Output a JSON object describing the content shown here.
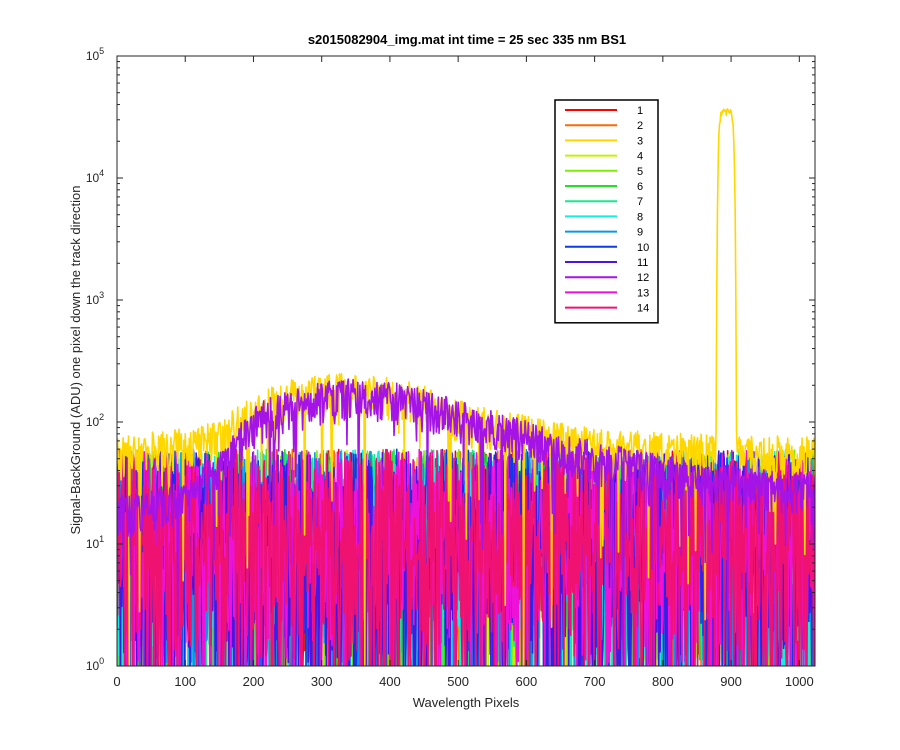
{
  "chart_data": {
    "type": "line",
    "title": "s2015082904_img.mat int time = 25 sec  335 nm BS1",
    "xlabel": "Wavelength Pixels",
    "ylabel": "Signal-BackGround (ADU) one pixel down the track direction",
    "xlim": [
      0,
      1023
    ],
    "ylim": [
      1,
      100000
    ],
    "yscale": "log",
    "xticks": [
      "0",
      "100",
      "200",
      "300",
      "400",
      "500",
      "600",
      "700",
      "800",
      "900",
      "1000"
    ],
    "ytick_base": "10",
    "ytick_exponents": [
      "0",
      "1",
      "2",
      "3",
      "4",
      "5"
    ],
    "grid": false,
    "legend_position": "top-right",
    "note": "",
    "series": [
      {
        "name": "1",
        "color": "#ff0000",
        "noise_level": 18,
        "peak": 0
      },
      {
        "name": "2",
        "color": "#ff6a00",
        "noise_level": 18,
        "peak": 0
      },
      {
        "name": "3",
        "color": "#ffd700",
        "noise_level": 20,
        "hump": [
          {
            "x": 0,
            "y": 60
          },
          {
            "x": 150,
            "y": 80
          },
          {
            "x": 250,
            "y": 180
          },
          {
            "x": 330,
            "y": 200
          },
          {
            "x": 420,
            "y": 180
          },
          {
            "x": 520,
            "y": 110
          },
          {
            "x": 620,
            "y": 85
          },
          {
            "x": 700,
            "y": 70
          },
          {
            "x": 820,
            "y": 65
          },
          {
            "x": 1023,
            "y": 60
          }
        ],
        "peak": 35000,
        "peak_center": 893,
        "peak_halfwidth": 12
      },
      {
        "name": "4",
        "color": "#c8f000",
        "noise_level": 18,
        "peak": 0
      },
      {
        "name": "5",
        "color": "#7cf000",
        "noise_level": 18,
        "peak": 0
      },
      {
        "name": "6",
        "color": "#22e022",
        "noise_level": 18,
        "peak": 0
      },
      {
        "name": "7",
        "color": "#18e890",
        "noise_level": 18,
        "peak": 0
      },
      {
        "name": "8",
        "color": "#12eee0",
        "noise_level": 18,
        "peak": 0
      },
      {
        "name": "9",
        "color": "#0d96e6",
        "noise_level": 18,
        "peak": 0
      },
      {
        "name": "10",
        "color": "#0d3ae6",
        "noise_level": 18,
        "peak": 0
      },
      {
        "name": "11",
        "color": "#4a14e6",
        "noise_level": 18,
        "peak": 0
      },
      {
        "name": "12",
        "color": "#a414e6",
        "noise_level": 18,
        "hump": [
          {
            "x": 0,
            "y": 20
          },
          {
            "x": 100,
            "y": 25
          },
          {
            "x": 160,
            "y": 50
          },
          {
            "x": 220,
            "y": 130
          },
          {
            "x": 300,
            "y": 170
          },
          {
            "x": 360,
            "y": 185
          },
          {
            "x": 430,
            "y": 160
          },
          {
            "x": 520,
            "y": 110
          },
          {
            "x": 620,
            "y": 75
          },
          {
            "x": 700,
            "y": 55
          },
          {
            "x": 820,
            "y": 40
          },
          {
            "x": 1023,
            "y": 30
          }
        ],
        "peak": 0
      },
      {
        "name": "13",
        "color": "#ee12d8",
        "noise_level": 18,
        "peak": 0
      },
      {
        "name": "14",
        "color": "#f01270",
        "noise_level": 18,
        "peak": 0
      }
    ]
  }
}
